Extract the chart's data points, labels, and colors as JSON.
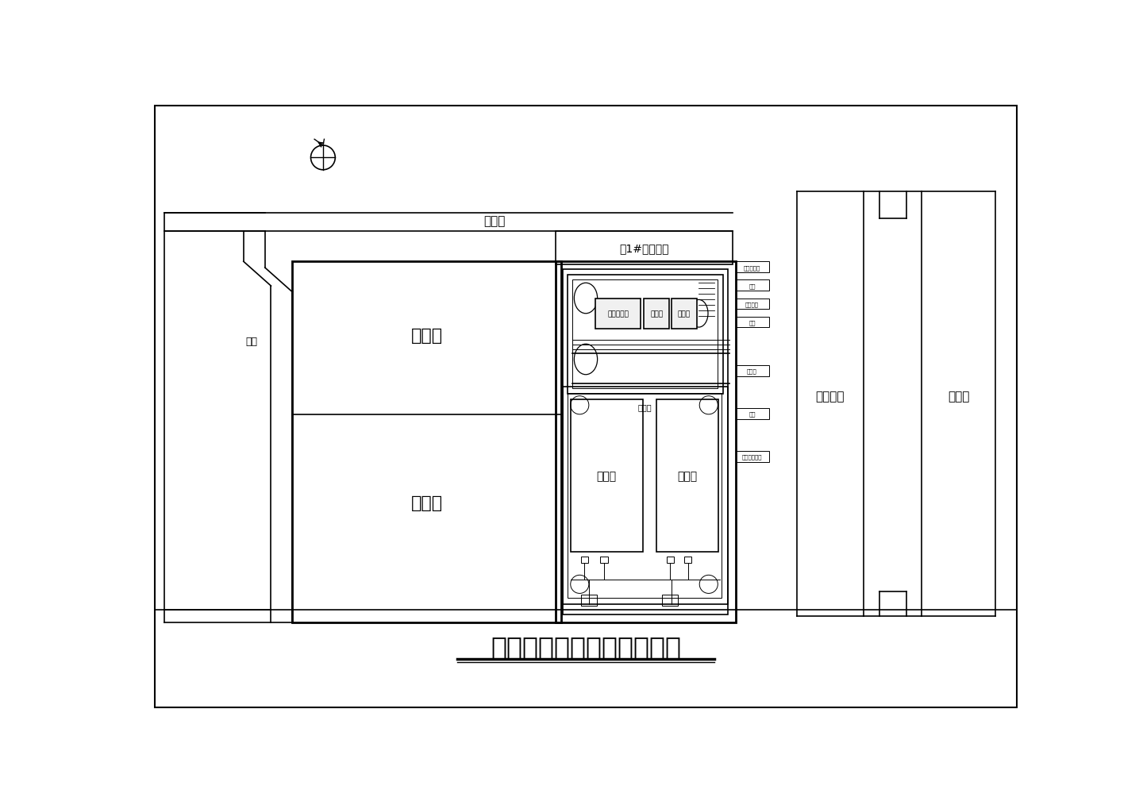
{
  "title": "南区给水泵站总平面布置图",
  "road_label": "飞翔路",
  "pump_station_label": "原1#雨水泵站",
  "living_area_label": "生活区",
  "work_area_label": "作业区",
  "road_label2": "围场河路",
  "river_label": "围场河",
  "corridor_label": "廊道",
  "tank1_label": "清水池",
  "tank2_label": "清水池",
  "elec_label": "配电控制间",
  "pump_label": "水库泵",
  "pipe_label": "管道泵",
  "pump_house_label": "泵房控制室",
  "entrance_label": "入口",
  "pipe_label2": "消防管网"
}
